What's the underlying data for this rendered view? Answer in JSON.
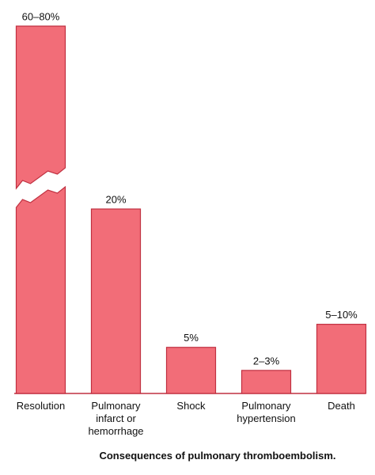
{
  "chart_data": {
    "type": "bar",
    "title": "Consequences of pulmonary thromboembolism.",
    "categories": [
      "Resolution",
      "Pulmonary\ninfarct or\nhemorrhage",
      "Shock",
      "Pulmonary\nhypertension",
      "Death"
    ],
    "values": [
      70,
      20,
      5,
      2.5,
      7.5
    ],
    "value_labels": [
      "60–80%",
      "20%",
      "5%",
      "2–3%",
      "5–10%"
    ],
    "color": "#f26d78",
    "axis_break": true
  }
}
